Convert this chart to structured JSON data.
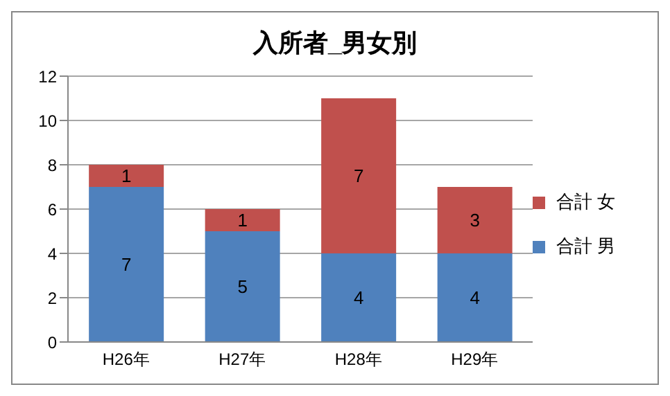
{
  "chart_data": {
    "type": "bar",
    "title": "入所者_男女別",
    "categories": [
      "H26年",
      "H27年",
      "H28年",
      "H29年"
    ],
    "stacked": true,
    "series": [
      {
        "name": "合計 男",
        "color": "#4f81bd",
        "values": [
          7,
          5,
          4,
          4
        ]
      },
      {
        "name": "合計 女",
        "color": "#c0504d",
        "values": [
          1,
          1,
          7,
          3
        ]
      }
    ],
    "ylim": [
      0,
      12
    ],
    "yticks": [
      0,
      2,
      4,
      6,
      8,
      10,
      12
    ],
    "grid": "y",
    "legend": "right",
    "data_labels": true
  }
}
